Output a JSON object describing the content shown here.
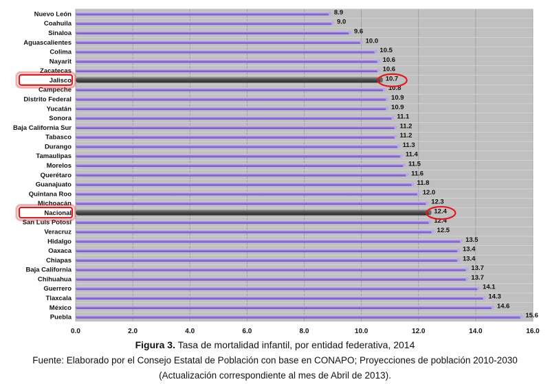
{
  "chart_data": {
    "type": "bar",
    "orientation": "horizontal",
    "categories": [
      "Nuevo León",
      "Coahuila",
      "Sinaloa",
      "Aguascalientes",
      "Colima",
      "Nayarit",
      "Zacatecas",
      "Jalisco",
      "Campeche",
      "Distrito Federal",
      "Yucatán",
      "Sonora",
      "Baja California Sur",
      "Tabasco",
      "Durango",
      "Tamaulipas",
      "Morelos",
      "Querétaro",
      "Guanajuato",
      "Quintana Roo",
      "Michoacán",
      "Nacional",
      "San Luis Potosí",
      "Veracruz",
      "Hidalgo",
      "Oaxaca",
      "Chiapas",
      "Baja California",
      "Chihuahua",
      "Guerrero",
      "Tlaxcala",
      "México",
      "Puebla"
    ],
    "values": [
      8.9,
      9.0,
      9.6,
      10.0,
      10.5,
      10.6,
      10.6,
      10.7,
      10.8,
      10.9,
      10.9,
      11.1,
      11.2,
      11.2,
      11.3,
      11.4,
      11.5,
      11.6,
      11.8,
      12.0,
      12.3,
      12.4,
      12.4,
      12.5,
      13.5,
      13.4,
      13.4,
      13.7,
      13.7,
      14.1,
      14.3,
      14.6,
      15.6
    ],
    "value_labels": [
      "8.9",
      "9.0",
      "9.6",
      "10.0",
      "10.5",
      "10.6",
      "10.6",
      "10.7",
      "10.8",
      "10.9",
      "10.9",
      "11.1",
      "11.2",
      "11.2",
      "11.3",
      "11.4",
      "11.5",
      "11.6",
      "11.8",
      "12.0",
      "12.3",
      "12.4",
      "12.4",
      "12.5",
      "13.5",
      "13.4",
      "13.4",
      "13.7",
      "13.7",
      "14.1",
      "14.3",
      "14.6",
      "15.6"
    ],
    "highlighted": [
      "Jalisco",
      "Nacional"
    ],
    "xlim": [
      0,
      16
    ],
    "xticks": [
      "0.0",
      "2.0",
      "4.0",
      "6.0",
      "8.0",
      "10.0",
      "12.0",
      "14.0",
      "16.0"
    ],
    "grid": true,
    "colors": {
      "bar": "#9b7fe0",
      "bar_light": "#c9b8f3",
      "bar_dark": "#6a4fc0",
      "highlight_bar": "#4a4a4a",
      "plot_bg": "#c0c0c0",
      "highlight_ring": "#e8161b"
    }
  },
  "caption": {
    "figure_label": "Figura 3.",
    "figure_text": " Tasa de mortalidad infantil, por entidad federativa, 2014",
    "source": "Fuente: Elaborado por el Consejo Estatal de Población con base en CONAPO; Proyecciones de población 2010-2030",
    "note": "(Actualización correspondiente al mes de Abril de 2013)."
  }
}
